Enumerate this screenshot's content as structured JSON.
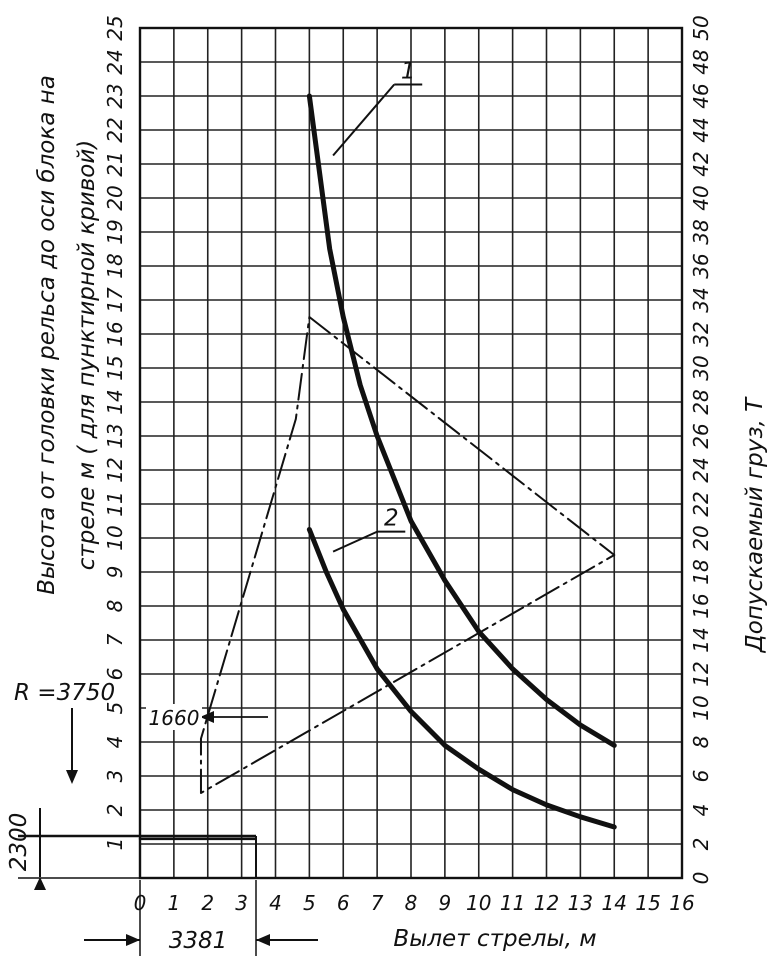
{
  "chart_data": {
    "type": "line",
    "title": "",
    "xlabel": "Вылет стрелы, м",
    "ylabel_left_line1": "Высота от головки рельса до оси блока на",
    "ylabel_left_line2": "стреле м ( для пунктирной кривой)",
    "ylabel_right": "Допускаемый груз, Т",
    "xlim": [
      0,
      16
    ],
    "ylim_left": [
      0,
      25
    ],
    "ylim_right": [
      0,
      50
    ],
    "x_ticks": [
      "0",
      "1",
      "2",
      "3",
      "4",
      "5",
      "6",
      "7",
      "8",
      "9",
      "10",
      "11",
      "12",
      "13",
      "14",
      "15",
      "16"
    ],
    "y_left_ticks": [
      "1",
      "2",
      "3",
      "4",
      "5",
      "6",
      "7",
      "8",
      "9",
      "10",
      "11",
      "12",
      "13",
      "14",
      "15",
      "16",
      "17",
      "18",
      "19",
      "20",
      "21",
      "22",
      "23",
      "24",
      "25"
    ],
    "y_right_ticks": [
      "0",
      "2",
      "4",
      "6",
      "8",
      "10",
      "12",
      "14",
      "16",
      "18",
      "20",
      "22",
      "24",
      "26",
      "28",
      "30",
      "32",
      "34",
      "36",
      "38",
      "40",
      "42",
      "44",
      "46",
      "48",
      "50"
    ],
    "grid": true,
    "series": [
      {
        "name": "1",
        "axis": "right",
        "style": "solid-thick",
        "x": [
          5.0,
          5.3,
          5.6,
          6.0,
          6.5,
          7.0,
          7.5,
          8.0,
          9.0,
          10.0,
          11.0,
          12.0,
          13.0,
          14.0
        ],
        "y": [
          46.0,
          41.5,
          37.0,
          33.0,
          29.0,
          26.0,
          23.5,
          21.0,
          17.5,
          14.5,
          12.3,
          10.5,
          9.0,
          7.8
        ]
      },
      {
        "name": "2",
        "axis": "right",
        "style": "solid-thick",
        "x": [
          5.0,
          5.5,
          6.0,
          7.0,
          8.0,
          9.0,
          10.0,
          11.0,
          12.0,
          13.0,
          14.0
        ],
        "y": [
          20.5,
          18.0,
          15.8,
          12.3,
          9.8,
          7.8,
          6.4,
          5.2,
          4.3,
          3.6,
          3.0
        ]
      },
      {
        "name": "",
        "axis": "left",
        "style": "dashed",
        "x": [
          5.0,
          14.0,
          1.8,
          1.8,
          4.6,
          5.0
        ],
        "y": [
          16.5,
          9.5,
          2.5,
          4.1,
          13.5,
          16.5
        ]
      },
      {
        "name": "",
        "axis": "left",
        "style": "thin-solid",
        "x": [
          0.0,
          3.4
        ],
        "y": [
          1.15,
          1.15
        ]
      }
    ],
    "annotations": [
      {
        "text": "1",
        "x": 7.8,
        "y_right": 47.5,
        "leader_to": [
          5.7,
          42.5
        ]
      },
      {
        "text": "2",
        "x": 7.3,
        "y_right": 21.2,
        "leader_to": [
          5.7,
          19.2
        ]
      },
      {
        "text": "R =3750"
      },
      {
        "text": "1660"
      },
      {
        "text": "2300"
      },
      {
        "text": "3381"
      }
    ]
  }
}
